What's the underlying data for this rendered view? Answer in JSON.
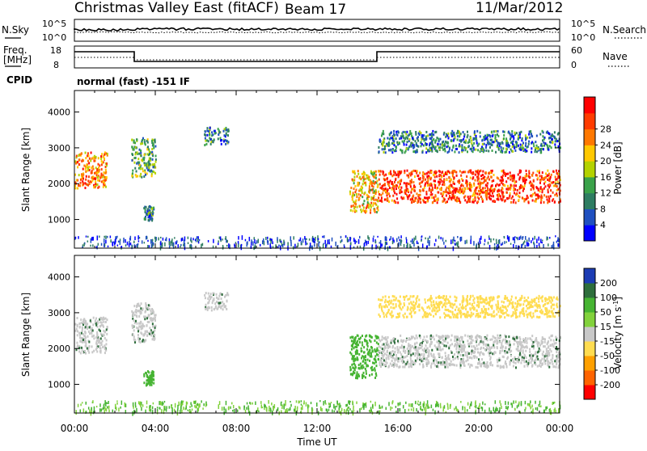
{
  "header": {
    "title": "Christmas Valley East (fitACF)",
    "beam": "Beam 17",
    "date": "11/Mar/2012"
  },
  "nsky_panel": {
    "left_label": "N.Sky",
    "right_label": "N.Search",
    "left_ticks": [
      "10^5",
      "10^0"
    ],
    "right_ticks": [
      "10^5",
      "10^0"
    ]
  },
  "freq_panel": {
    "left_label_line1": "Freq.",
    "left_label_line2": "[MHz]",
    "right_label": "Nave",
    "left_ticks": [
      "18",
      "8"
    ],
    "right_ticks": [
      "60",
      "0"
    ]
  },
  "cpid": {
    "label": "CPID",
    "value": "normal (fast) -151 IF"
  },
  "colors": {
    "power_scale": [
      "#0000ff",
      "#1f50c0",
      "#2e7d62",
      "#3aa24a",
      "#b4d200",
      "#ffc800",
      "#ff7800",
      "#ff3c00",
      "#ff0000"
    ],
    "velocity_scale": [
      "#1c3cb4",
      "#2e6e3c",
      "#46b432",
      "#82d23c",
      "#c8c8c8",
      "#ffdc50",
      "#ffa000",
      "#ff6400",
      "#ff0000"
    ],
    "ground_scatter": "#c8c8c8"
  },
  "chart_data": [
    {
      "type": "heatmap",
      "title": "",
      "xlabel": "Time UT",
      "ylabel": "Slant Range [km]",
      "xlim": [
        "00:00",
        "24:00"
      ],
      "ylim": [
        200,
        4600
      ],
      "x_ticks": [
        "00:00",
        "04:00",
        "08:00",
        "12:00",
        "16:00",
        "20:00",
        "00:00"
      ],
      "y_ticks": [
        1000,
        2000,
        3000,
        4000
      ],
      "colorbar": {
        "label": "Power [dB]",
        "ticks": [
          4,
          8,
          12,
          16,
          20,
          24,
          28
        ],
        "range": [
          0,
          30
        ]
      },
      "regions": [
        {
          "start_h": 0.0,
          "end_h": 1.6,
          "range_low_km": 1900,
          "range_high_km": 2900,
          "power_db": 22
        },
        {
          "start_h": 2.8,
          "end_h": 4.0,
          "range_low_km": 2200,
          "range_high_km": 3300,
          "power_db": 12
        },
        {
          "start_h": 3.4,
          "end_h": 3.9,
          "range_low_km": 1000,
          "range_high_km": 1400,
          "power_db": 6
        },
        {
          "start_h": 6.4,
          "end_h": 7.6,
          "range_low_km": 3100,
          "range_high_km": 3600,
          "power_db": 9
        },
        {
          "start_h": 13.6,
          "end_h": 15.0,
          "range_low_km": 1200,
          "range_high_km": 2400,
          "power_db": 18
        },
        {
          "start_h": 15.0,
          "end_h": 24.0,
          "range_low_km": 1500,
          "range_high_km": 2400,
          "power_db": 26
        },
        {
          "start_h": 15.0,
          "end_h": 24.0,
          "range_low_km": 2900,
          "range_high_km": 3500,
          "power_db": 7
        }
      ]
    },
    {
      "type": "heatmap",
      "title": "",
      "xlabel": "Time UT",
      "ylabel": "Slant Range [km]",
      "xlim": [
        "00:00",
        "24:00"
      ],
      "ylim": [
        200,
        4600
      ],
      "x_ticks": [
        "00:00",
        "04:00",
        "08:00",
        "12:00",
        "16:00",
        "20:00",
        "00:00"
      ],
      "y_ticks": [
        1000,
        2000,
        3000,
        4000
      ],
      "colorbar": {
        "label": "Velocity [m s^-1]",
        "ticks": [
          "200",
          "100",
          "50",
          "15",
          "-15",
          "-50",
          "-100",
          "-200"
        ],
        "range": [
          -250,
          250
        ]
      },
      "regions": [
        {
          "start_h": 0.0,
          "end_h": 1.6,
          "range_low_km": 1900,
          "range_high_km": 2900,
          "velocity_ms": 0,
          "ground_scatter": true
        },
        {
          "start_h": 2.8,
          "end_h": 4.0,
          "range_low_km": 2200,
          "range_high_km": 3300,
          "velocity_ms": 0,
          "ground_scatter": true
        },
        {
          "start_h": 3.4,
          "end_h": 3.9,
          "range_low_km": 1000,
          "range_high_km": 1400,
          "velocity_ms": 40,
          "ground_scatter": false
        },
        {
          "start_h": 6.4,
          "end_h": 7.6,
          "range_low_km": 3100,
          "range_high_km": 3600,
          "velocity_ms": 0,
          "ground_scatter": true
        },
        {
          "start_h": 13.6,
          "end_h": 15.0,
          "range_low_km": 1200,
          "range_high_km": 2400,
          "velocity_ms": 40,
          "ground_scatter": false
        },
        {
          "start_h": 15.0,
          "end_h": 24.0,
          "range_low_km": 1500,
          "range_high_km": 2400,
          "velocity_ms": 0,
          "ground_scatter": true
        },
        {
          "start_h": 15.0,
          "end_h": 24.0,
          "range_low_km": 2900,
          "range_high_km": 3500,
          "velocity_ms": -40,
          "ground_scatter": false
        }
      ]
    }
  ]
}
